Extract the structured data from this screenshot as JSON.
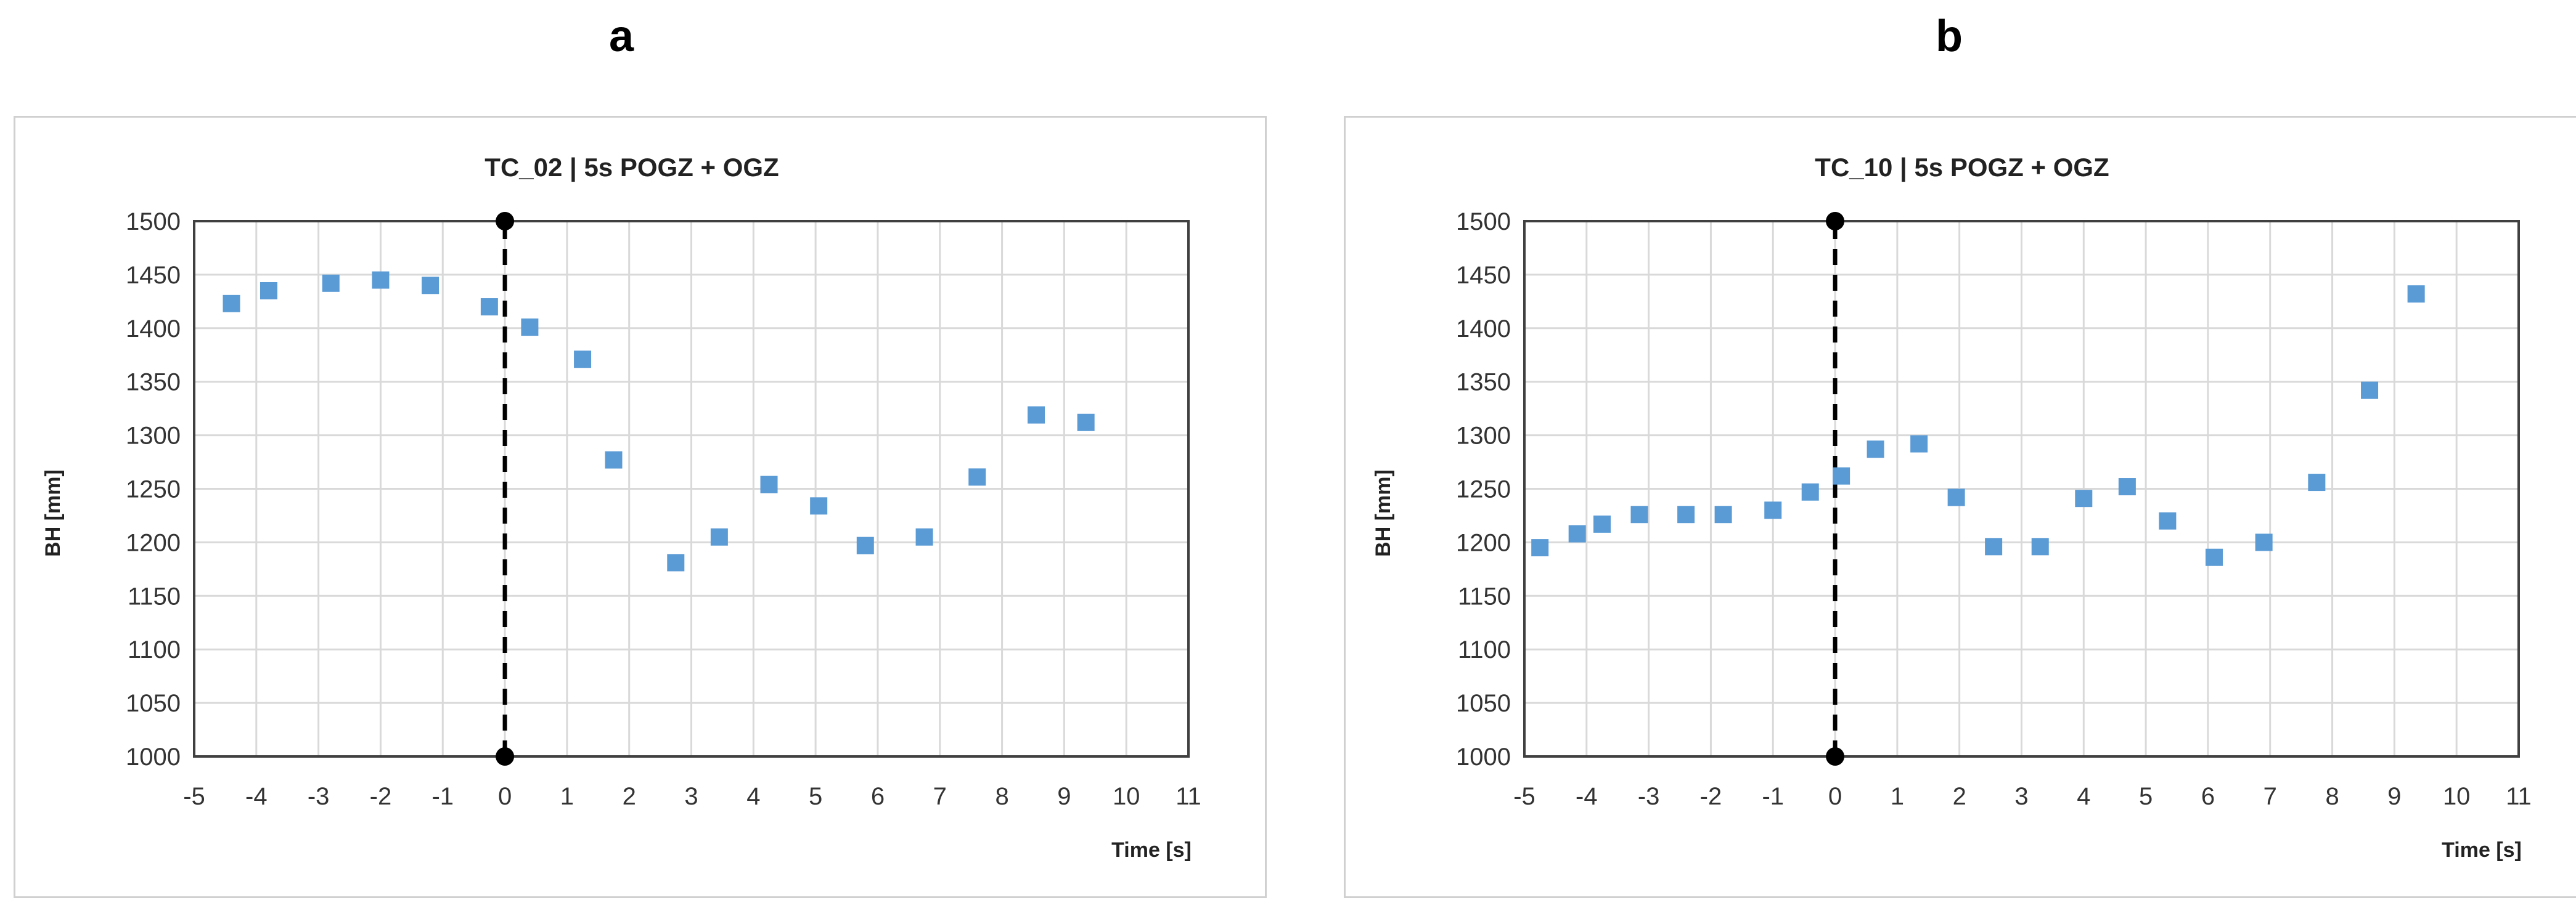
{
  "panels": [
    {
      "letter": "a"
    },
    {
      "letter": "b"
    }
  ],
  "chart_data": [
    {
      "type": "scatter",
      "title": "TC_02 | 5s POGZ + OGZ",
      "xlabel": "Time [s]",
      "ylabel": "BH [mm]",
      "xlim": [
        -5,
        11
      ],
      "ylim": [
        1000,
        1500
      ],
      "xticks": [
        -5,
        -4,
        -3,
        -2,
        -1,
        0,
        1,
        2,
        3,
        4,
        5,
        6,
        7,
        8,
        9,
        10,
        11
      ],
      "yticks": [
        1000,
        1050,
        1100,
        1150,
        1200,
        1250,
        1300,
        1350,
        1400,
        1450,
        1500
      ],
      "grid": true,
      "marker_color": "#5B9BD5",
      "points": [
        {
          "x": -4.4,
          "y": 1423
        },
        {
          "x": -3.8,
          "y": 1435
        },
        {
          "x": -2.8,
          "y": 1442
        },
        {
          "x": -2.0,
          "y": 1445
        },
        {
          "x": -1.2,
          "y": 1440
        },
        {
          "x": -0.25,
          "y": 1420
        },
        {
          "x": 0.4,
          "y": 1401
        },
        {
          "x": 1.25,
          "y": 1371
        },
        {
          "x": 1.75,
          "y": 1277
        },
        {
          "x": 2.75,
          "y": 1181
        },
        {
          "x": 3.45,
          "y": 1205
        },
        {
          "x": 4.25,
          "y": 1254
        },
        {
          "x": 5.05,
          "y": 1234
        },
        {
          "x": 5.8,
          "y": 1197
        },
        {
          "x": 6.75,
          "y": 1205
        },
        {
          "x": 7.6,
          "y": 1261
        },
        {
          "x": 8.55,
          "y": 1319
        },
        {
          "x": 9.35,
          "y": 1312
        }
      ],
      "vline": {
        "x": 0,
        "y_from": 1000,
        "y_to": 1500,
        "color": "#000000",
        "style": "dashed",
        "endpoints": true
      }
    },
    {
      "type": "scatter",
      "title": "TC_10 | 5s POGZ + OGZ",
      "xlabel": "Time [s]",
      "ylabel": "BH [mm]",
      "xlim": [
        -5,
        11
      ],
      "ylim": [
        1000,
        1500
      ],
      "xticks": [
        -5,
        -4,
        -3,
        -2,
        -1,
        0,
        1,
        2,
        3,
        4,
        5,
        6,
        7,
        8,
        9,
        10,
        11
      ],
      "yticks": [
        1000,
        1050,
        1100,
        1150,
        1200,
        1250,
        1300,
        1350,
        1400,
        1450,
        1500
      ],
      "grid": true,
      "marker_color": "#5B9BD5",
      "points": [
        {
          "x": -4.75,
          "y": 1195
        },
        {
          "x": -4.15,
          "y": 1208
        },
        {
          "x": -3.75,
          "y": 1217
        },
        {
          "x": -3.15,
          "y": 1226
        },
        {
          "x": -2.4,
          "y": 1226
        },
        {
          "x": -1.8,
          "y": 1226
        },
        {
          "x": -1.0,
          "y": 1230
        },
        {
          "x": -0.4,
          "y": 1247
        },
        {
          "x": 0.1,
          "y": 1262
        },
        {
          "x": 0.65,
          "y": 1287
        },
        {
          "x": 1.35,
          "y": 1292
        },
        {
          "x": 1.95,
          "y": 1242
        },
        {
          "x": 2.55,
          "y": 1196
        },
        {
          "x": 3.3,
          "y": 1196
        },
        {
          "x": 4.0,
          "y": 1241
        },
        {
          "x": 4.7,
          "y": 1252
        },
        {
          "x": 5.35,
          "y": 1220
        },
        {
          "x": 6.1,
          "y": 1186
        },
        {
          "x": 6.9,
          "y": 1200
        },
        {
          "x": 7.75,
          "y": 1256
        },
        {
          "x": 8.6,
          "y": 1342
        },
        {
          "x": 9.35,
          "y": 1432
        }
      ],
      "vline": {
        "x": 0,
        "y_from": 1000,
        "y_to": 1500,
        "color": "#000000",
        "style": "dashed",
        "endpoints": true
      }
    }
  ]
}
